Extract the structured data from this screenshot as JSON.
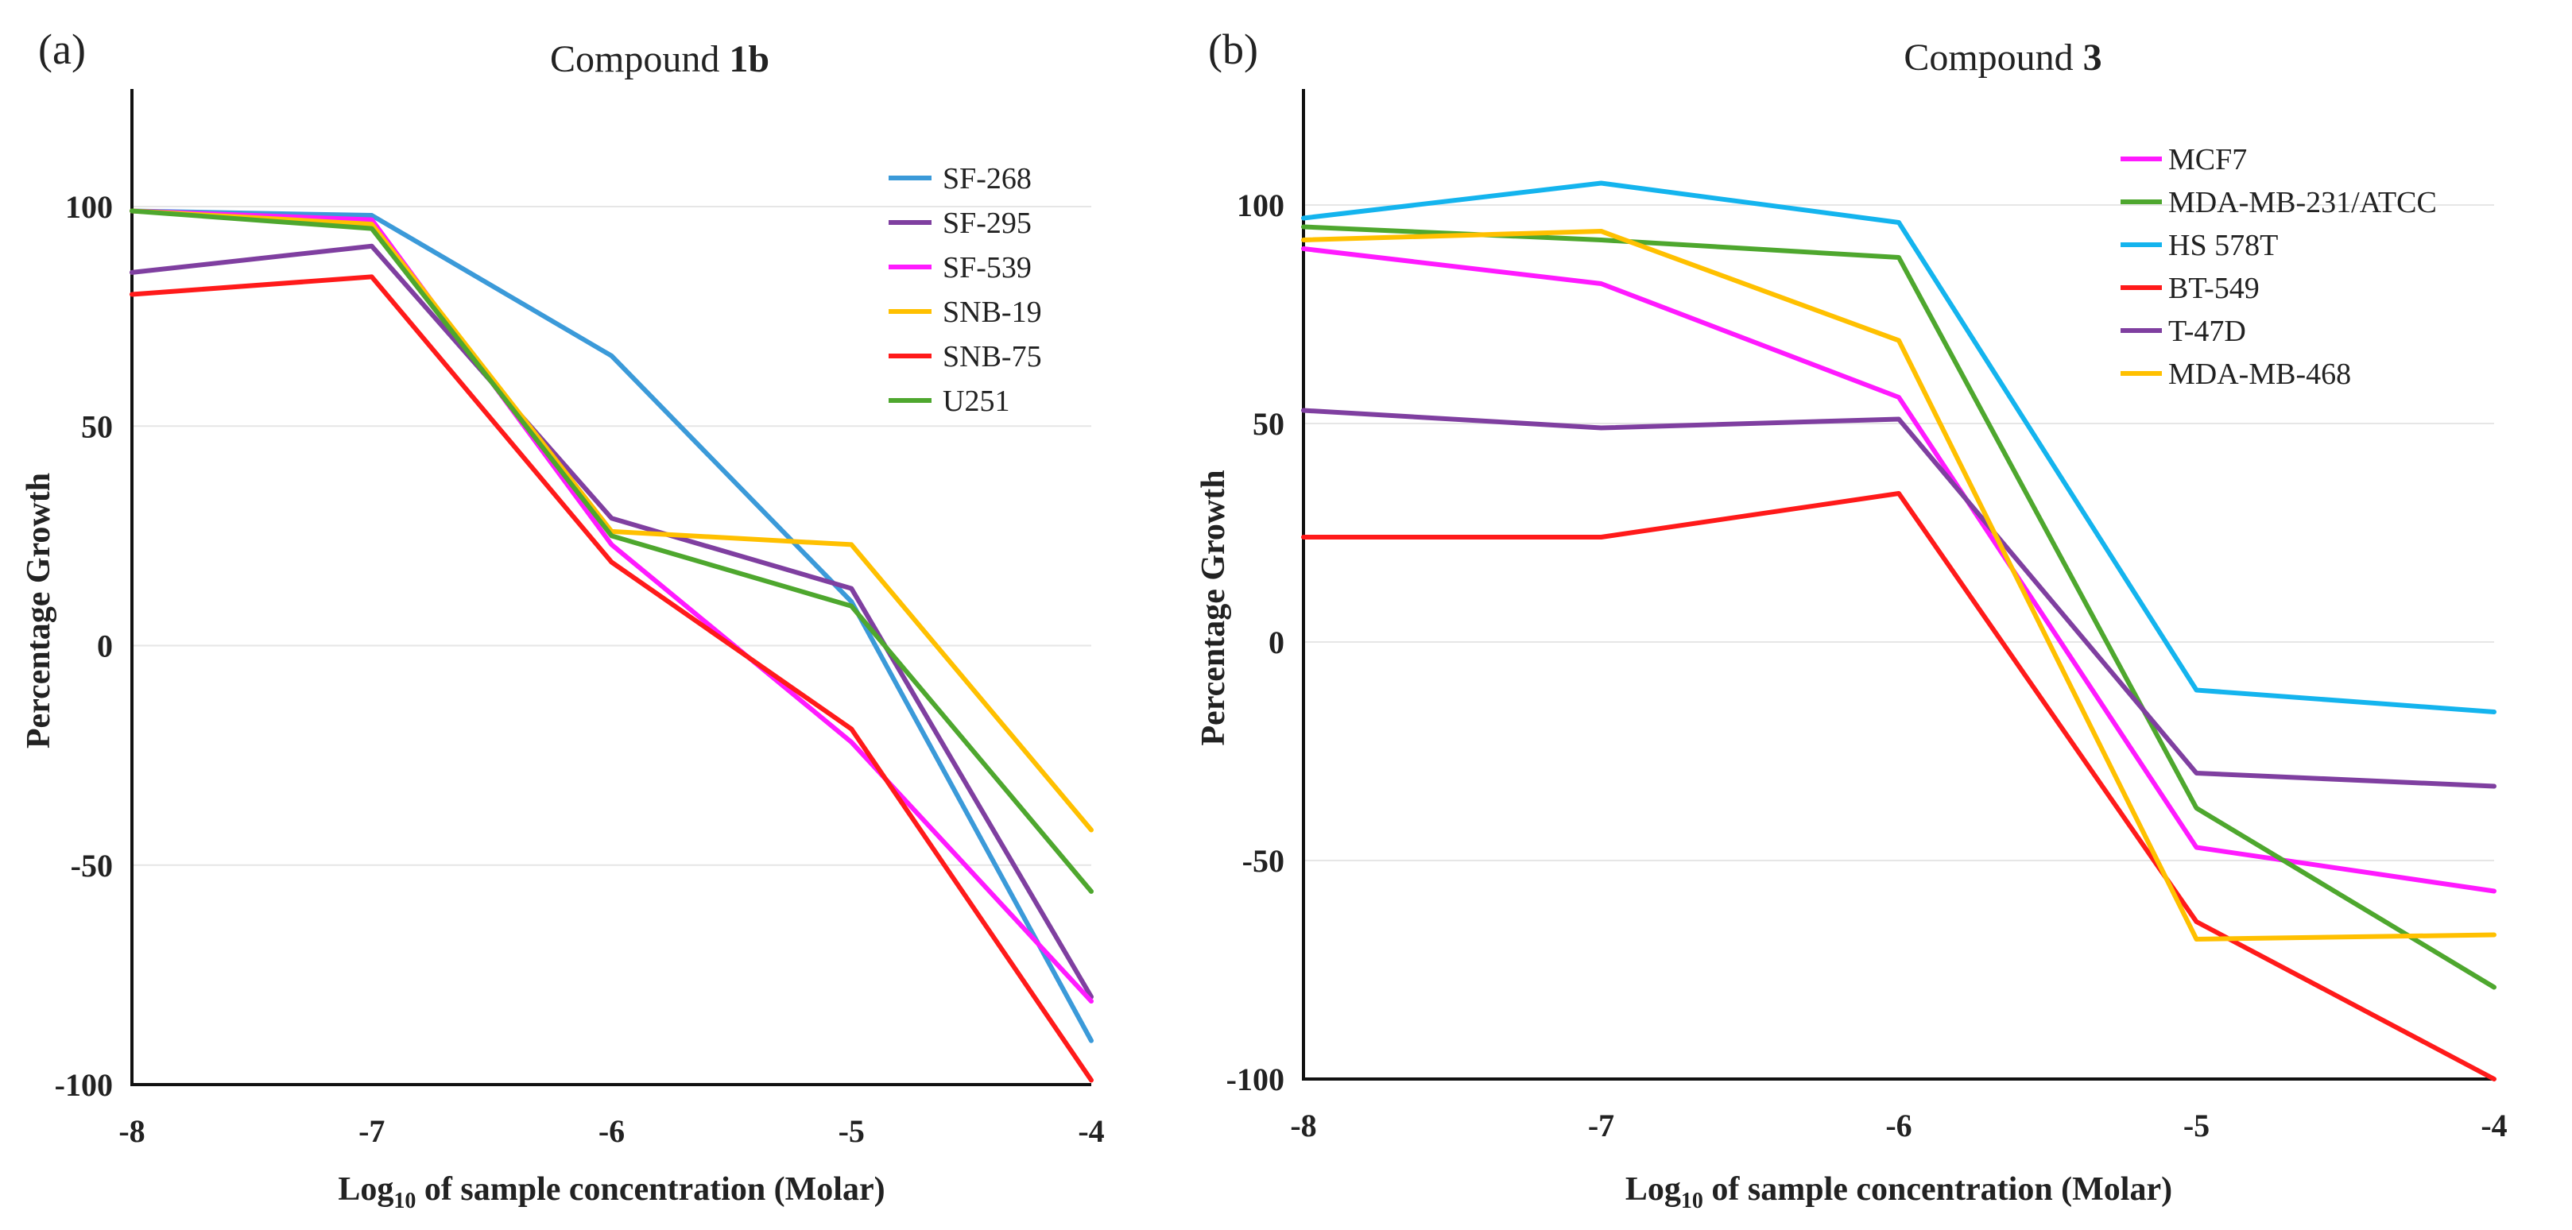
{
  "chart_data": [
    {
      "type": "line",
      "panel_label": "(a)",
      "title_prefix": "Compound ",
      "title_bold": "1b",
      "xlabel_prefix": "Log",
      "xlabel_sub": "10",
      "xlabel_suffix": " of sample concentration (Molar)",
      "ylabel": "Percentage Growth",
      "x": [
        -8,
        -7,
        -6,
        -5,
        -4
      ],
      "x_tick_labels": [
        "-8",
        "-7",
        "-6",
        "-5",
        "-4"
      ],
      "xlim": [
        -8,
        -4
      ],
      "ylim": [
        -100,
        125
      ],
      "y_ticks": [
        -100,
        -50,
        0,
        50,
        100
      ],
      "y_tick_labels": [
        "-100",
        "-50",
        "0",
        "50",
        "100"
      ],
      "grid": true,
      "legend_position": "top-right",
      "series": [
        {
          "name": "SF-268",
          "color": "#3b9ad9",
          "values": [
            99,
            98,
            66,
            10,
            -90
          ]
        },
        {
          "name": "SF-295",
          "color": "#7f3fa0",
          "values": [
            85,
            91,
            29,
            13,
            -80
          ]
        },
        {
          "name": "SF-539",
          "color": "#ff1aff",
          "values": [
            99,
            97,
            23,
            -22,
            -81
          ]
        },
        {
          "name": "SNB-19",
          "color": "#ffc000",
          "values": [
            99,
            96,
            26,
            23,
            -42
          ]
        },
        {
          "name": "SNB-75",
          "color": "#ff1a1a",
          "values": [
            80,
            84,
            19,
            -19,
            -99
          ]
        },
        {
          "name": "U251",
          "color": "#4ea72e",
          "values": [
            99,
            95,
            25,
            9,
            -56
          ]
        }
      ]
    },
    {
      "type": "line",
      "panel_label": "(b)",
      "title_prefix": "Compound ",
      "title_bold": "3",
      "xlabel_prefix": "Log",
      "xlabel_sub": "10",
      "xlabel_suffix": " of sample concentration (Molar)",
      "ylabel": "Percentage Growth",
      "x": [
        -8,
        -7,
        -6,
        -5,
        -4
      ],
      "x_tick_labels": [
        "-8",
        "-7",
        "-6",
        "-5",
        "-4"
      ],
      "xlim": [
        -8,
        -4
      ],
      "ylim": [
        -100,
        125
      ],
      "y_ticks": [
        -100,
        -50,
        0,
        50,
        100
      ],
      "y_tick_labels": [
        "-100",
        "-50",
        "0",
        "50",
        "100"
      ],
      "grid": true,
      "legend_position": "top-right",
      "series": [
        {
          "name": "MCF7",
          "color": "#ff1aff",
          "values": [
            90,
            82,
            56,
            -47,
            -57
          ]
        },
        {
          "name": "MDA-MB-231/ATCC",
          "color": "#4ea72e",
          "values": [
            95,
            92,
            88,
            -38,
            -79
          ]
        },
        {
          "name": "HS 578T",
          "color": "#14b4ee",
          "values": [
            97,
            105,
            96,
            -11,
            -16
          ]
        },
        {
          "name": "BT-549",
          "color": "#ff1a1a",
          "values": [
            24,
            24,
            34,
            -64,
            -100
          ]
        },
        {
          "name": "T-47D",
          "color": "#7f3fa0",
          "values": [
            53,
            49,
            51,
            -30,
            -33
          ]
        },
        {
          "name": "MDA-MB-468",
          "color": "#ffc000",
          "values": [
            92,
            94,
            69,
            -68,
            -67
          ]
        }
      ]
    }
  ]
}
